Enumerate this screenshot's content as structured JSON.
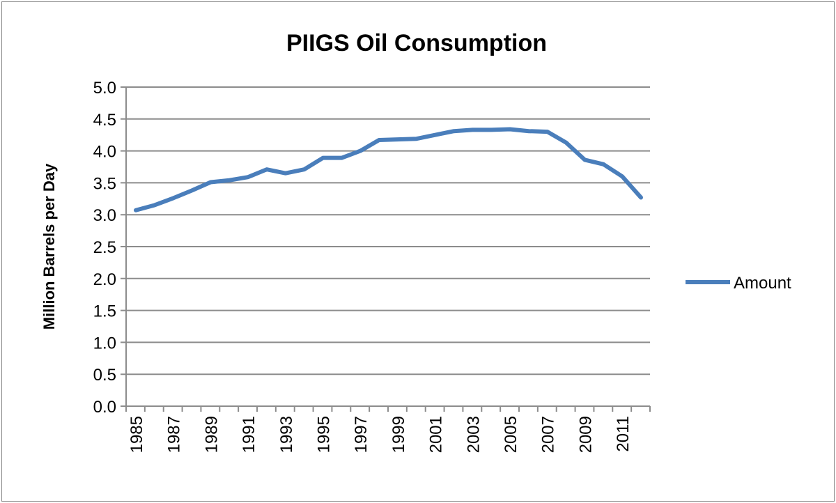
{
  "chart_data": {
    "type": "line",
    "title": "PIIGS Oil Consumption",
    "xlabel": "",
    "ylabel": "Million Barrels per Day",
    "ylim": [
      0,
      5
    ],
    "yticks": [
      "0.0",
      "0.5",
      "1.0",
      "1.5",
      "2.0",
      "2.5",
      "3.0",
      "3.5",
      "4.0",
      "4.5",
      "5.0"
    ],
    "x": [
      1985,
      1986,
      1987,
      1988,
      1989,
      1990,
      1991,
      1992,
      1993,
      1994,
      1995,
      1996,
      1997,
      1998,
      1999,
      2000,
      2001,
      2002,
      2003,
      2004,
      2005,
      2006,
      2007,
      2008,
      2009,
      2010,
      2011,
      2012
    ],
    "xtick_labels": [
      "1985",
      "1987",
      "1989",
      "1991",
      "1993",
      "1995",
      "1997",
      "1999",
      "2001",
      "2003",
      "2005",
      "2007",
      "2009",
      "2011"
    ],
    "series": [
      {
        "name": "Amount",
        "color": "#4a7ebb",
        "values": [
          3.07,
          3.15,
          3.26,
          3.38,
          3.51,
          3.54,
          3.59,
          3.71,
          3.65,
          3.71,
          3.89,
          3.89,
          4.0,
          4.17,
          4.18,
          4.19,
          4.25,
          4.31,
          4.33,
          4.33,
          4.34,
          4.31,
          4.3,
          4.13,
          3.86,
          3.79,
          3.6,
          3.27
        ]
      }
    ],
    "grid": true,
    "legend": "right"
  }
}
